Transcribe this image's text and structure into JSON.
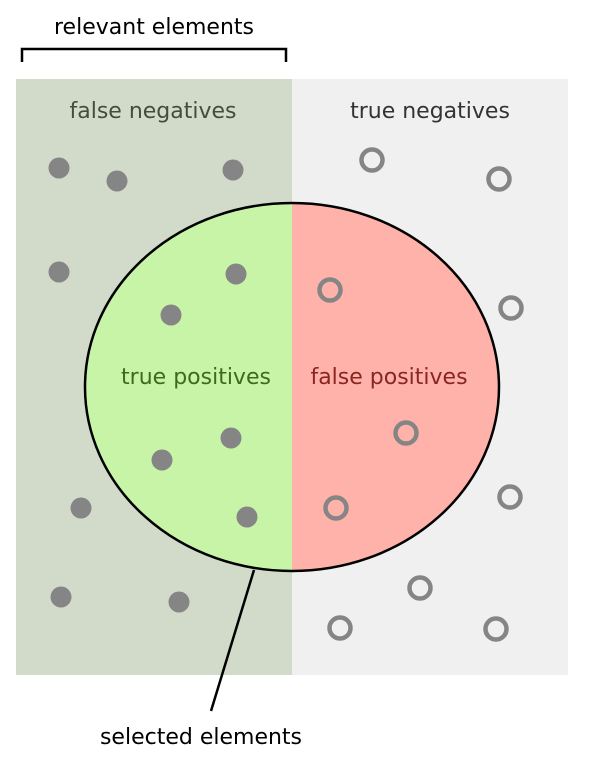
{
  "labels": {
    "relevant": "relevant elements",
    "selected": "selected elements",
    "false_negatives": "false negatives",
    "true_negatives": "true negatives",
    "true_positives": "true positives",
    "false_positives": "false positives"
  },
  "colors": {
    "relevant_bg": "#d2dbca",
    "irrelevant_bg": "#f0f0f0",
    "true_positive_fill": "#c8f4a8",
    "false_positive_fill": "#ffb2aa",
    "dot": "#858585",
    "fn_text": "#434d3c",
    "tn_text": "#333333",
    "tp_text": "#3e6a1e",
    "fp_text": "#8a2620",
    "line": "#000000"
  }
}
